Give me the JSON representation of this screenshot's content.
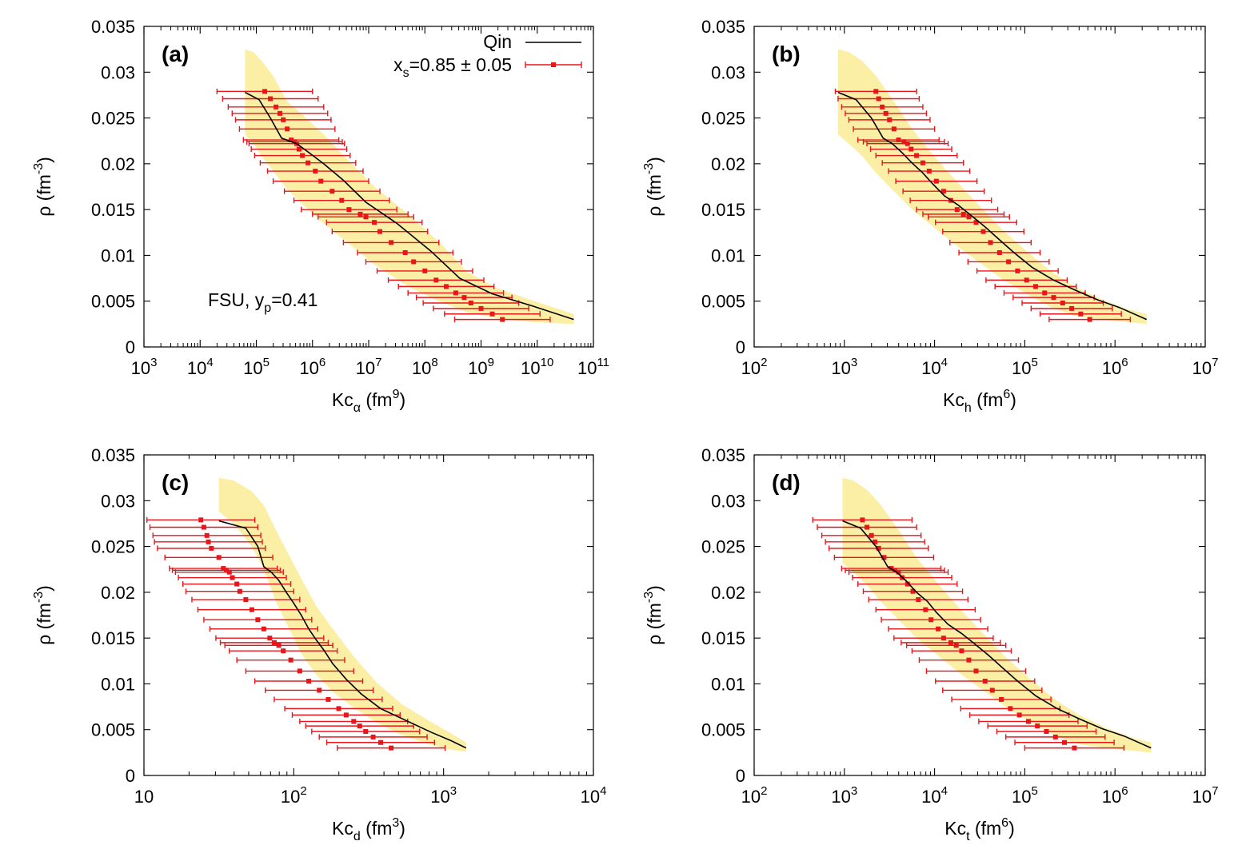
{
  "colors": {
    "band": "#fbefa6",
    "qin": "#000000",
    "data": "#e8161b",
    "axis": "#000000"
  },
  "legend": {
    "qin_label": "Qin",
    "data_label_pre": "x",
    "data_label_sub": "s",
    "data_label_post": "=0.85 ± 0.05"
  },
  "note": {
    "pre": "FSU, y",
    "sub": "p",
    "post": "=0.41"
  },
  "chart_data": [
    {
      "type": "line",
      "panel": "(a)",
      "xlabel_pre": "Kc",
      "xlabel_sub": "α",
      "xlabel_mid": " (fm",
      "xlabel_sup": "9",
      "xlabel_post": ")",
      "ylabel_pre": "ρ (fm",
      "ylabel_sup": "-3",
      "ylabel_post": ")",
      "xscale": "log",
      "xlim": [
        3,
        11
      ],
      "ylim": [
        0,
        0.035
      ],
      "x_ticks": [
        3,
        4,
        5,
        6,
        7,
        8,
        9,
        10,
        11
      ],
      "x_tick_base": "10",
      "y_ticks": [
        "0",
        "0.005",
        "0.01",
        "0.015",
        "0.02",
        "0.025",
        "0.03",
        "0.035"
      ],
      "qin": {
        "logx": [
          4.8,
          5.05,
          5.25,
          5.45,
          5.72,
          5.92,
          6.2,
          6.55,
          6.95,
          7.5,
          8.1,
          8.62,
          9.2,
          9.9,
          10.65
        ],
        "y": [
          0.0278,
          0.027,
          0.025,
          0.0228,
          0.0222,
          0.0213,
          0.02,
          0.0182,
          0.0158,
          0.0135,
          0.0105,
          0.0075,
          0.0058,
          0.0045,
          0.003
        ]
      },
      "band": {
        "logx": [
          4.8,
          4.95,
          5.1,
          5.3,
          5.55,
          5.85,
          6.2,
          6.6,
          7.1,
          7.7,
          8.25,
          8.75,
          9.3,
          9.95,
          10.65
        ],
        "upper": [
          0.0325,
          0.0322,
          0.0312,
          0.0296,
          0.0268,
          0.0252,
          0.0232,
          0.0206,
          0.0175,
          0.0145,
          0.0115,
          0.0082,
          0.0064,
          0.005,
          0.0036
        ],
        "lower": [
          0.0232,
          0.0222,
          0.0208,
          0.0192,
          0.0172,
          0.0154,
          0.0135,
          0.0115,
          0.009,
          0.0066,
          0.005,
          0.0038,
          0.0031,
          0.0027,
          0.0025
        ]
      },
      "points": {
        "logx": [
          5.15,
          5.25,
          5.35,
          5.42,
          5.48,
          5.55,
          5.62,
          5.68,
          5.72,
          5.76,
          5.82,
          5.92,
          6.05,
          6.15,
          6.35,
          6.52,
          6.65,
          6.85,
          6.95,
          7.1,
          7.2,
          7.4,
          7.65,
          7.8,
          8.0,
          8.2,
          8.38,
          8.55,
          8.7,
          8.82,
          9.0,
          9.2,
          9.38
        ],
        "y": [
          0.0279,
          0.0271,
          0.0262,
          0.0255,
          0.0248,
          0.0238,
          0.0226,
          0.0224,
          0.0222,
          0.0216,
          0.0209,
          0.0201,
          0.0192,
          0.0181,
          0.017,
          0.016,
          0.015,
          0.0145,
          0.0142,
          0.0136,
          0.0126,
          0.0114,
          0.0103,
          0.0093,
          0.0083,
          0.0073,
          0.0066,
          0.0059,
          0.0054,
          0.0048,
          0.0042,
          0.0036,
          0.003
        ],
        "err_dex": 0.85
      }
    },
    {
      "type": "line",
      "panel": "(b)",
      "xlabel_pre": "Kc",
      "xlabel_sub": "h",
      "xlabel_mid": " (fm",
      "xlabel_sup": "6",
      "xlabel_post": ")",
      "ylabel_pre": "ρ (fm",
      "ylabel_sup": "-3",
      "ylabel_post": ")",
      "xscale": "log",
      "xlim": [
        2,
        7
      ],
      "ylim": [
        0,
        0.035
      ],
      "x_ticks": [
        2,
        3,
        4,
        5,
        6,
        7
      ],
      "x_tick_base": "10",
      "y_ticks": [
        "0",
        "0.005",
        "0.01",
        "0.015",
        "0.02",
        "0.025",
        "0.03",
        "0.035"
      ],
      "qin": {
        "logx": [
          2.93,
          3.13,
          3.3,
          3.43,
          3.53,
          3.63,
          3.76,
          3.87,
          3.98,
          4.11,
          4.26,
          4.4,
          4.56,
          4.72,
          4.88,
          5.08,
          5.32,
          5.56,
          5.82,
          6.05,
          6.35
        ],
        "y": [
          0.0278,
          0.027,
          0.025,
          0.0228,
          0.0222,
          0.0213,
          0.02,
          0.019,
          0.0178,
          0.0165,
          0.0155,
          0.0144,
          0.0131,
          0.0117,
          0.0103,
          0.0087,
          0.0073,
          0.0062,
          0.0051,
          0.0043,
          0.003
        ]
      },
      "band": {
        "logx": [
          2.93,
          3.05,
          3.2,
          3.35,
          3.55,
          3.75,
          4.0,
          4.25,
          4.5,
          4.75,
          5.05,
          5.3,
          5.55,
          5.85,
          6.15,
          6.35
        ],
        "upper": [
          0.0325,
          0.0322,
          0.0312,
          0.0296,
          0.0268,
          0.0238,
          0.0208,
          0.018,
          0.0154,
          0.0128,
          0.0102,
          0.0082,
          0.0066,
          0.0052,
          0.0041,
          0.0036
        ],
        "lower": [
          0.0232,
          0.0222,
          0.0208,
          0.019,
          0.017,
          0.015,
          0.013,
          0.011,
          0.0092,
          0.0074,
          0.0056,
          0.0043,
          0.0034,
          0.003,
          0.0027,
          0.0025
        ]
      },
      "points": {
        "logx": [
          3.35,
          3.38,
          3.42,
          3.46,
          3.5,
          3.55,
          3.6,
          3.66,
          3.7,
          3.74,
          3.8,
          3.87,
          3.94,
          4.02,
          4.1,
          4.18,
          4.25,
          4.32,
          4.38,
          4.46,
          4.54,
          4.62,
          4.72,
          4.82,
          4.92,
          5.02,
          5.12,
          5.22,
          5.32,
          5.42,
          5.52,
          5.62,
          5.72
        ],
        "y": [
          0.0279,
          0.0271,
          0.0262,
          0.0255,
          0.0248,
          0.0238,
          0.0226,
          0.0224,
          0.0222,
          0.0216,
          0.0209,
          0.0201,
          0.0192,
          0.0181,
          0.017,
          0.016,
          0.015,
          0.0145,
          0.0142,
          0.0136,
          0.0126,
          0.0114,
          0.0103,
          0.0093,
          0.0083,
          0.0073,
          0.0066,
          0.0059,
          0.0054,
          0.0048,
          0.0042,
          0.0036,
          0.003
        ],
        "err_dex": 0.45
      }
    },
    {
      "type": "line",
      "panel": "(c)",
      "xlabel_pre": "Kc",
      "xlabel_sub": "d",
      "xlabel_mid": " (fm",
      "xlabel_sup": "3",
      "xlabel_post": ")",
      "ylabel_pre": "ρ (fm",
      "ylabel_sup": "-3",
      "ylabel_post": ")",
      "xscale": "log",
      "xlim": [
        1,
        4
      ],
      "ylim": [
        0,
        0.035
      ],
      "x_ticks": [
        1,
        2,
        3,
        4
      ],
      "x_tick_base": "10",
      "x_tick_first_plain": "10",
      "y_ticks": [
        "0",
        "0.005",
        "0.01",
        "0.015",
        "0.02",
        "0.025",
        "0.03",
        "0.035"
      ],
      "qin": {
        "logx": [
          1.5,
          1.68,
          1.76,
          1.8,
          1.85,
          1.9,
          1.95,
          2.0,
          2.05,
          2.1,
          2.15,
          2.2,
          2.26,
          2.35,
          2.45,
          2.58,
          2.75,
          2.92,
          3.05,
          3.15
        ],
        "y": [
          0.0278,
          0.027,
          0.025,
          0.0228,
          0.0222,
          0.0213,
          0.02,
          0.0188,
          0.0175,
          0.016,
          0.0148,
          0.0137,
          0.0122,
          0.0105,
          0.0089,
          0.0073,
          0.006,
          0.0047,
          0.0038,
          0.003
        ]
      },
      "band": {
        "logx": [
          1.5,
          1.6,
          1.72,
          1.8,
          1.88,
          1.97,
          2.05,
          2.15,
          2.27,
          2.4,
          2.55,
          2.72,
          2.9,
          3.05,
          3.15
        ],
        "upper": [
          0.0325,
          0.0322,
          0.031,
          0.0295,
          0.0268,
          0.024,
          0.0215,
          0.0185,
          0.0158,
          0.013,
          0.0102,
          0.0078,
          0.006,
          0.0046,
          0.0036
        ],
        "lower": [
          0.0288,
          0.0275,
          0.025,
          0.0225,
          0.019,
          0.016,
          0.0133,
          0.011,
          0.009,
          0.0074,
          0.0058,
          0.0044,
          0.0034,
          0.0028,
          0.0026
        ]
      },
      "points": {
        "logx": [
          1.38,
          1.4,
          1.42,
          1.43,
          1.45,
          1.5,
          1.53,
          1.55,
          1.57,
          1.59,
          1.62,
          1.64,
          1.68,
          1.72,
          1.76,
          1.8,
          1.84,
          1.87,
          1.9,
          1.93,
          1.98,
          2.04,
          2.1,
          2.17,
          2.23,
          2.3,
          2.35,
          2.4,
          2.44,
          2.48,
          2.53,
          2.58,
          2.65
        ],
        "y": [
          0.0279,
          0.0271,
          0.0262,
          0.0255,
          0.0248,
          0.0238,
          0.0226,
          0.0224,
          0.0222,
          0.0216,
          0.0209,
          0.0201,
          0.0192,
          0.0181,
          0.017,
          0.016,
          0.015,
          0.0145,
          0.0142,
          0.0136,
          0.0126,
          0.0114,
          0.0103,
          0.0093,
          0.0083,
          0.0073,
          0.0066,
          0.0059,
          0.0054,
          0.0048,
          0.0042,
          0.0036,
          0.003
        ],
        "err_dex": 0.36
      }
    },
    {
      "type": "line",
      "panel": "(d)",
      "xlabel_pre": "Kc",
      "xlabel_sub": "t",
      "xlabel_mid": " (fm",
      "xlabel_sup": "6",
      "xlabel_post": ")",
      "ylabel_pre": "ρ (fm",
      "ylabel_sup": "-3",
      "ylabel_post": ")",
      "xscale": "log",
      "xlim": [
        2,
        7
      ],
      "ylim": [
        0,
        0.035
      ],
      "x_ticks": [
        2,
        3,
        4,
        5,
        6,
        7
      ],
      "x_tick_base": "10",
      "y_ticks": [
        "0",
        "0.005",
        "0.01",
        "0.015",
        "0.02",
        "0.025",
        "0.03",
        "0.035"
      ],
      "qin": {
        "logx": [
          2.98,
          3.18,
          3.35,
          3.48,
          3.58,
          3.68,
          3.8,
          3.92,
          4.02,
          4.15,
          4.3,
          4.44,
          4.6,
          4.76,
          4.92,
          5.12,
          5.36,
          5.6,
          5.86,
          6.1,
          6.4
        ],
        "y": [
          0.0278,
          0.027,
          0.025,
          0.0228,
          0.0222,
          0.0213,
          0.02,
          0.019,
          0.0178,
          0.0165,
          0.0155,
          0.0144,
          0.0131,
          0.0117,
          0.0103,
          0.0087,
          0.0073,
          0.0062,
          0.0051,
          0.0043,
          0.003
        ]
      },
      "band": {
        "logx": [
          2.98,
          3.1,
          3.25,
          3.4,
          3.6,
          3.8,
          4.05,
          4.3,
          4.55,
          4.8,
          5.1,
          5.35,
          5.6,
          5.9,
          6.2,
          6.4
        ],
        "upper": [
          0.0325,
          0.0322,
          0.0312,
          0.0296,
          0.0268,
          0.0238,
          0.0208,
          0.018,
          0.0154,
          0.0128,
          0.0102,
          0.0082,
          0.0066,
          0.0052,
          0.0041,
          0.0036
        ],
        "lower": [
          0.0232,
          0.0222,
          0.0208,
          0.019,
          0.017,
          0.015,
          0.013,
          0.011,
          0.0092,
          0.0074,
          0.0056,
          0.0043,
          0.0034,
          0.003,
          0.0027,
          0.0025
        ]
      },
      "points": {
        "logx": [
          3.2,
          3.25,
          3.3,
          3.34,
          3.38,
          3.44,
          3.52,
          3.56,
          3.6,
          3.64,
          3.7,
          3.76,
          3.82,
          3.9,
          3.96,
          4.04,
          4.1,
          4.18,
          4.24,
          4.3,
          4.38,
          4.46,
          4.56,
          4.64,
          4.74,
          4.84,
          4.94,
          5.04,
          5.14,
          5.24,
          5.34,
          5.44,
          5.55
        ],
        "y": [
          0.0279,
          0.0271,
          0.0262,
          0.0255,
          0.0248,
          0.0238,
          0.0226,
          0.0224,
          0.0222,
          0.0216,
          0.0209,
          0.0201,
          0.0192,
          0.0181,
          0.017,
          0.016,
          0.015,
          0.0145,
          0.0142,
          0.0136,
          0.0126,
          0.0114,
          0.0103,
          0.0093,
          0.0083,
          0.0073,
          0.0066,
          0.0059,
          0.0054,
          0.0048,
          0.0042,
          0.0036,
          0.003
        ],
        "err_dex": 0.55
      }
    }
  ]
}
